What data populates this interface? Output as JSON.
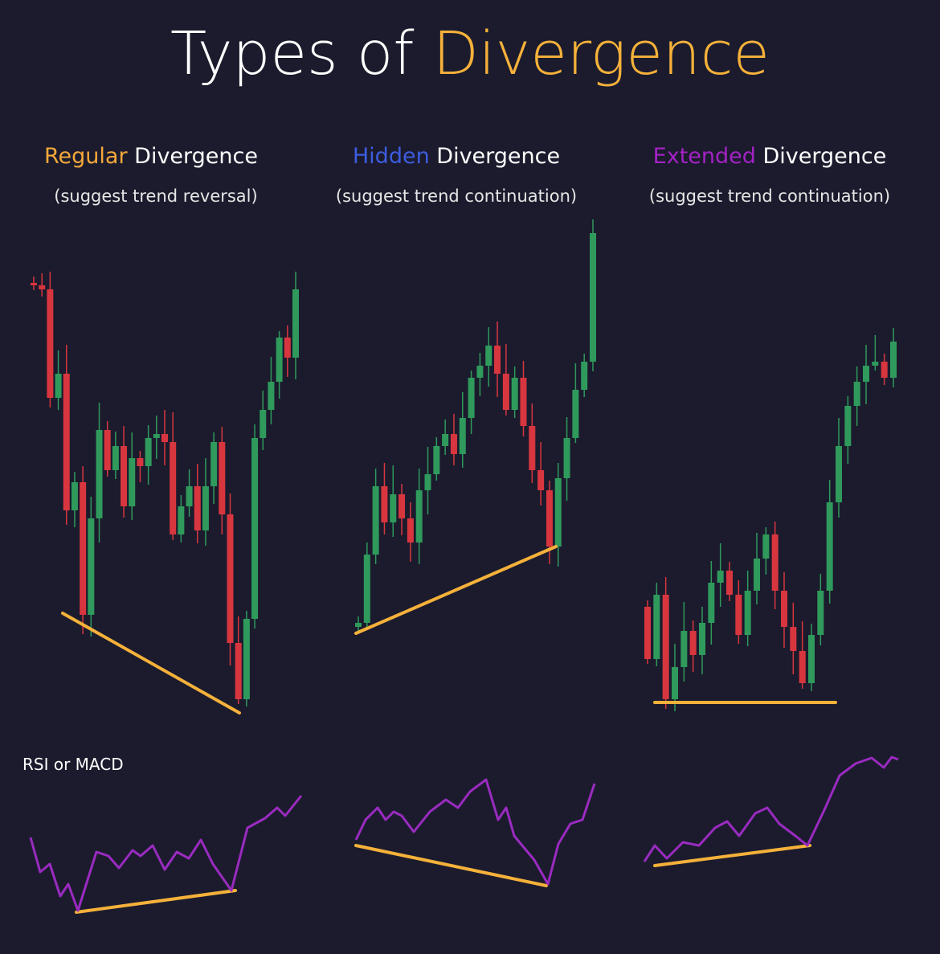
{
  "header": {
    "title_plain": "Types of",
    "title_highlight": "Divergence"
  },
  "panels": [
    {
      "highlight": "Regular",
      "word": "Divergence",
      "subtitle": "(suggest trend reversal)"
    },
    {
      "highlight": "Hidden",
      "word": "Divergence",
      "subtitle": "(suggest trend continuation)"
    },
    {
      "highlight": "Extended",
      "word": "Divergence",
      "subtitle": "(suggest trend continuation)"
    }
  ],
  "indicator_label": "RSI or MACD"
}
